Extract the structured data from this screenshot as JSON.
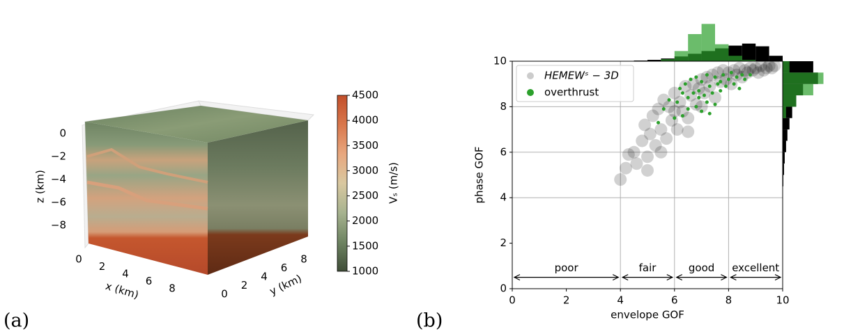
{
  "chart_data": [
    {
      "type": "volume3d",
      "label": "(a)",
      "xlabel": "x (km)",
      "ylabel": "y (km)",
      "zlabel": "z (km)",
      "xlim": [
        0,
        9.6
      ],
      "ylim": [
        0,
        9.6
      ],
      "zlim": [
        -9.6,
        0.6
      ],
      "xticks": [
        0,
        2,
        4,
        6,
        8
      ],
      "yticks": [
        0,
        2,
        4,
        6,
        8
      ],
      "zticks": [
        0,
        {
          "value": -2,
          "label": "−2"
        },
        {
          "value": -4,
          "label": "−4"
        },
        {
          "value": -6,
          "label": "−6"
        },
        {
          "value": -8,
          "label": "−8"
        }
      ],
      "colorbar": {
        "label": "Vₛ (m/s)",
        "lim": [
          1000,
          4500
        ],
        "ticks": [
          1000,
          1500,
          2000,
          2500,
          3000,
          3500,
          4000,
          4500
        ],
        "colors": [
          "#3f4d37",
          "#6e8462",
          "#a7b38f",
          "#d9c8a0",
          "#e8a77e",
          "#d9774c",
          "#c24f2a"
        ]
      }
    },
    {
      "type": "scatter",
      "label": "(b)",
      "xlabel": "envelope GOF",
      "ylabel": "phase GOF",
      "xlim": [
        0,
        10
      ],
      "ylim": [
        0,
        10
      ],
      "xticks": [
        0,
        2,
        4,
        6,
        8,
        10
      ],
      "yticks": [
        0,
        2,
        4,
        6,
        8,
        10
      ],
      "xgrid": [
        4,
        6,
        8
      ],
      "ygrid": [
        4,
        6,
        8
      ],
      "legend": "upper left",
      "series": [
        {
          "name": "HEMEWˢ − 3D",
          "color": "#000000",
          "x": [
            4.0,
            4.2,
            4.3,
            4.5,
            4.6,
            4.8,
            4.9,
            5.0,
            5.1,
            5.2,
            5.3,
            5.4,
            5.5,
            5.6,
            5.7,
            5.8,
            5.9,
            6.0,
            6.1,
            6.2,
            6.3,
            6.4,
            6.5,
            6.6,
            6.7,
            6.8,
            6.9,
            7.0,
            7.1,
            7.2,
            7.3,
            7.4,
            7.5,
            7.6,
            7.7,
            7.8,
            7.9,
            8.0,
            8.1,
            8.2,
            8.3,
            8.4,
            8.5,
            8.6,
            8.7,
            8.8,
            8.9,
            9.0,
            9.1,
            9.2,
            9.3,
            9.4,
            9.5,
            9.6,
            9.7,
            5.0,
            5.5,
            6.0,
            6.5,
            7.0
          ],
          "values": [
            4.8,
            5.3,
            5.9,
            6.0,
            5.5,
            6.5,
            7.2,
            5.8,
            6.8,
            7.6,
            6.3,
            7.9,
            7.0,
            8.3,
            6.6,
            8.0,
            7.4,
            8.6,
            7.0,
            8.2,
            7.8,
            8.9,
            7.5,
            8.5,
            9.0,
            8.1,
            8.8,
            9.2,
            8.6,
            9.3,
            8.9,
            9.4,
            8.4,
            9.5,
            9.1,
            9.6,
            9.2,
            9.5,
            9.0,
            9.6,
            9.4,
            9.7,
            9.3,
            9.6,
            9.5,
            9.7,
            9.6,
            9.7,
            9.5,
            9.8,
            9.6,
            9.7,
            9.8,
            9.7,
            9.8,
            5.2,
            6.0,
            7.8,
            6.9,
            8.0
          ],
          "x_hist": [
            0,
            0,
            0,
            0,
            0,
            0,
            0,
            0,
            0.5,
            1,
            2,
            4,
            7,
            11,
            15,
            19,
            23,
            26,
            22,
            8
          ],
          "y_hist": [
            0,
            0,
            0,
            0,
            0,
            0,
            0,
            0,
            0.5,
            1,
            2,
            3,
            5,
            7,
            10,
            14,
            20,
            30,
            52,
            45
          ]
        },
        {
          "name": "overthrust",
          "color": "#2ca02c",
          "x": [
            6.1,
            6.2,
            6.3,
            6.4,
            6.5,
            6.5,
            6.6,
            6.7,
            6.8,
            6.8,
            6.9,
            7.0,
            7.0,
            7.1,
            7.2,
            7.2,
            7.3,
            7.4,
            7.5,
            7.5,
            7.6,
            7.7,
            7.8,
            7.9,
            8.0,
            8.1,
            8.2,
            8.3,
            8.4,
            8.5,
            5.4,
            5.6,
            5.8,
            6.0,
            6.9,
            7.3,
            7.7,
            8.6,
            8.8,
            6.3
          ],
          "values": [
            8.2,
            8.8,
            7.6,
            9.0,
            8.4,
            7.9,
            9.2,
            8.6,
            8.0,
            9.3,
            8.7,
            9.1,
            7.8,
            8.5,
            9.4,
            8.2,
            8.9,
            8.6,
            9.3,
            8.1,
            9.0,
            8.7,
            9.4,
            8.9,
            9.2,
            9.5,
            9.0,
            9.3,
            8.8,
            9.4,
            7.3,
            7.9,
            8.3,
            7.5,
            8.4,
            7.7,
            9.1,
            9.2,
            9.4,
            8.6
          ],
          "x_hist": [
            0,
            0,
            0,
            0,
            0,
            0,
            0,
            0,
            0,
            0,
            0,
            3,
            15,
            40,
            55,
            25,
            8,
            2,
            0,
            0
          ],
          "y_hist": [
            0,
            0,
            0,
            0,
            0,
            0,
            0,
            0,
            0,
            0,
            0,
            0,
            0,
            0,
            0,
            5,
            20,
            45,
            60,
            10
          ]
        }
      ],
      "hist_bins": [
        0,
        0.5,
        1,
        1.5,
        2,
        2.5,
        3,
        3.5,
        4,
        4.5,
        5,
        5.5,
        6,
        6.5,
        7,
        7.5,
        8,
        8.5,
        9,
        9.5,
        10
      ],
      "hist_lim": [
        0,
        80
      ],
      "annotations": [
        {
          "label": "poor",
          "from": 0,
          "to": 4,
          "y": 0.5
        },
        {
          "label": "fair",
          "from": 4,
          "to": 6,
          "y": 0.5
        },
        {
          "label": "good",
          "from": 6,
          "to": 8,
          "y": 0.5
        },
        {
          "label": "excellent",
          "from": 8,
          "to": 10,
          "y": 0.5
        }
      ]
    }
  ]
}
